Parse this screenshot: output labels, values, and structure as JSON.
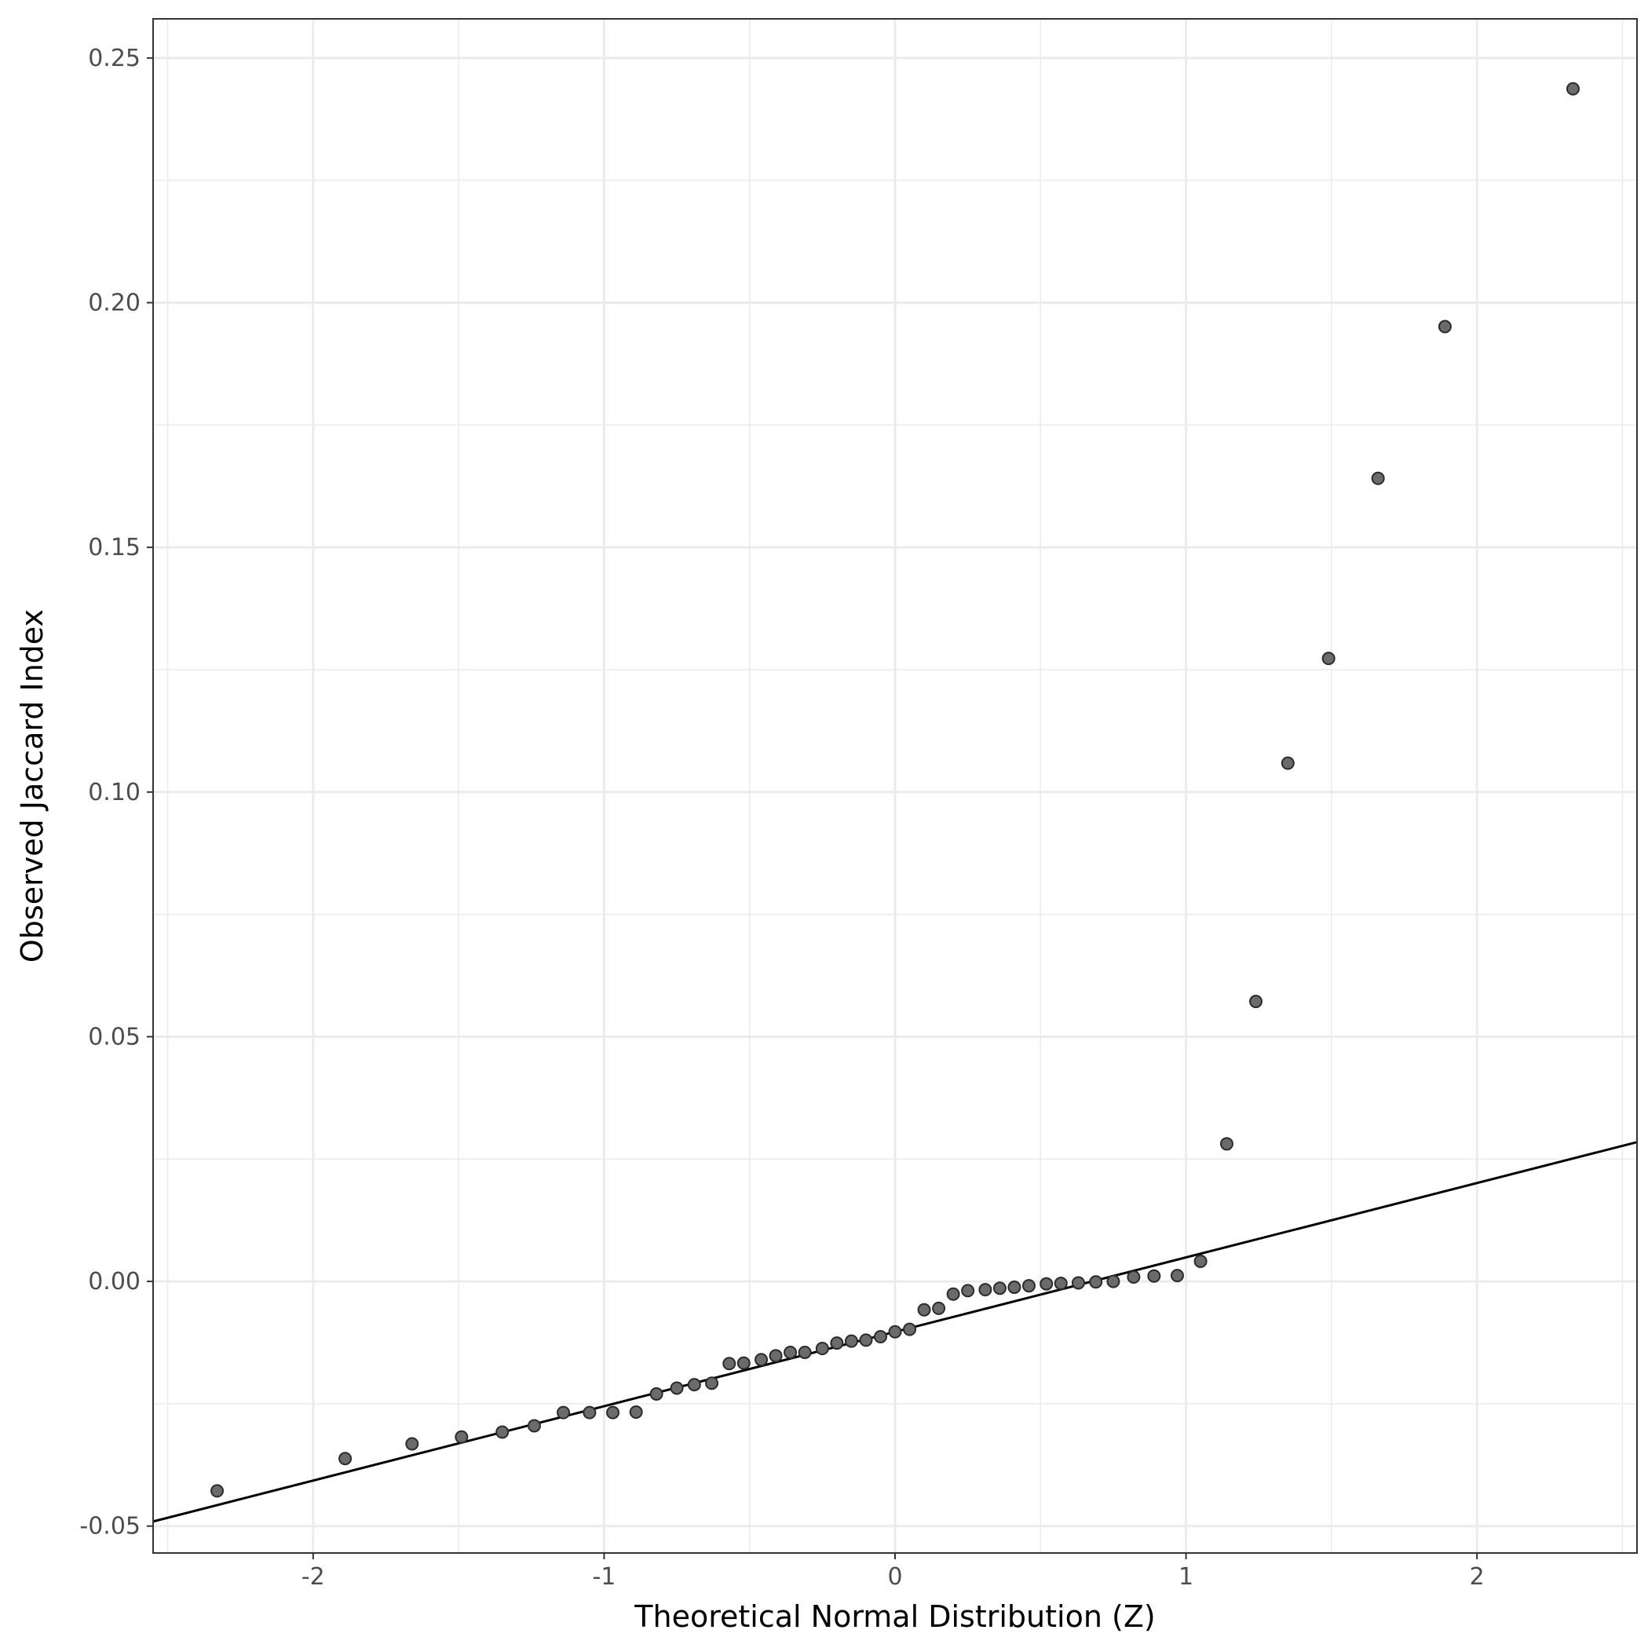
{
  "chart_data": {
    "type": "scatter",
    "title": "",
    "xlabel": "Theoretical Normal Distribution (Z)",
    "ylabel": "Observed Jaccard Index",
    "xlim": [
      -2.55,
      2.55
    ],
    "ylim": [
      -0.0555,
      0.258
    ],
    "x_ticks": [
      {
        "value": -2,
        "label": "-2"
      },
      {
        "value": -1,
        "label": "-1"
      },
      {
        "value": 0,
        "label": "0"
      },
      {
        "value": 1,
        "label": "1"
      },
      {
        "value": 2,
        "label": "2"
      }
    ],
    "y_ticks": [
      {
        "value": -0.05,
        "label": "-0.05"
      },
      {
        "value": 0,
        "label": "0.00"
      },
      {
        "value": 0.05,
        "label": "0.05"
      },
      {
        "value": 0.1,
        "label": "0.10"
      },
      {
        "value": 0.15,
        "label": "0.15"
      },
      {
        "value": 0.2,
        "label": "0.20"
      },
      {
        "value": 0.25,
        "label": "0.25"
      }
    ],
    "grid": true,
    "legend": "none",
    "point_color": "#6b6b6b",
    "line_color": "#000000",
    "reference_line": {
      "intercept": -0.0103,
      "slope": 0.0152
    },
    "points": [
      {
        "x": -2.33,
        "y": -0.0428
      },
      {
        "x": -1.89,
        "y": -0.0362
      },
      {
        "x": -1.66,
        "y": -0.0332
      },
      {
        "x": -1.49,
        "y": -0.0318
      },
      {
        "x": -1.35,
        "y": -0.0308
      },
      {
        "x": -1.24,
        "y": -0.0295
      },
      {
        "x": -1.14,
        "y": -0.0268
      },
      {
        "x": -1.05,
        "y": -0.0268
      },
      {
        "x": -0.97,
        "y": -0.0268
      },
      {
        "x": -0.89,
        "y": -0.0267
      },
      {
        "x": -0.82,
        "y": -0.023
      },
      {
        "x": -0.75,
        "y": -0.0218
      },
      {
        "x": -0.69,
        "y": -0.0211
      },
      {
        "x": -0.63,
        "y": -0.0208
      },
      {
        "x": -0.57,
        "y": -0.0168
      },
      {
        "x": -0.52,
        "y": -0.0167
      },
      {
        "x": -0.46,
        "y": -0.016
      },
      {
        "x": -0.41,
        "y": -0.0152
      },
      {
        "x": -0.36,
        "y": -0.0145
      },
      {
        "x": -0.31,
        "y": -0.0145
      },
      {
        "x": -0.25,
        "y": -0.0137
      },
      {
        "x": -0.2,
        "y": -0.0126
      },
      {
        "x": -0.15,
        "y": -0.0122
      },
      {
        "x": -0.1,
        "y": -0.012
      },
      {
        "x": -0.05,
        "y": -0.0113
      },
      {
        "x": 0.0,
        "y": -0.0103
      },
      {
        "x": 0.05,
        "y": -0.0098
      },
      {
        "x": 0.1,
        "y": -0.0058
      },
      {
        "x": 0.15,
        "y": -0.0055
      },
      {
        "x": 0.2,
        "y": -0.0026
      },
      {
        "x": 0.25,
        "y": -0.0019
      },
      {
        "x": 0.31,
        "y": -0.0017
      },
      {
        "x": 0.36,
        "y": -0.0014
      },
      {
        "x": 0.41,
        "y": -0.0012
      },
      {
        "x": 0.46,
        "y": -0.0009
      },
      {
        "x": 0.52,
        "y": -0.0005
      },
      {
        "x": 0.57,
        "y": -0.0004
      },
      {
        "x": 0.63,
        "y": -0.0003
      },
      {
        "x": 0.69,
        "y": -0.0001
      },
      {
        "x": 0.75,
        "y": 0.0
      },
      {
        "x": 0.82,
        "y": 0.0009
      },
      {
        "x": 0.89,
        "y": 0.0011
      },
      {
        "x": 0.97,
        "y": 0.0012
      },
      {
        "x": 1.05,
        "y": 0.0041
      },
      {
        "x": 1.14,
        "y": 0.0281
      },
      {
        "x": 1.24,
        "y": 0.0572
      },
      {
        "x": 1.35,
        "y": 0.1059
      },
      {
        "x": 1.49,
        "y": 0.1273
      },
      {
        "x": 1.66,
        "y": 0.1641
      },
      {
        "x": 1.89,
        "y": 0.1951
      },
      {
        "x": 2.33,
        "y": 0.2437
      }
    ]
  }
}
